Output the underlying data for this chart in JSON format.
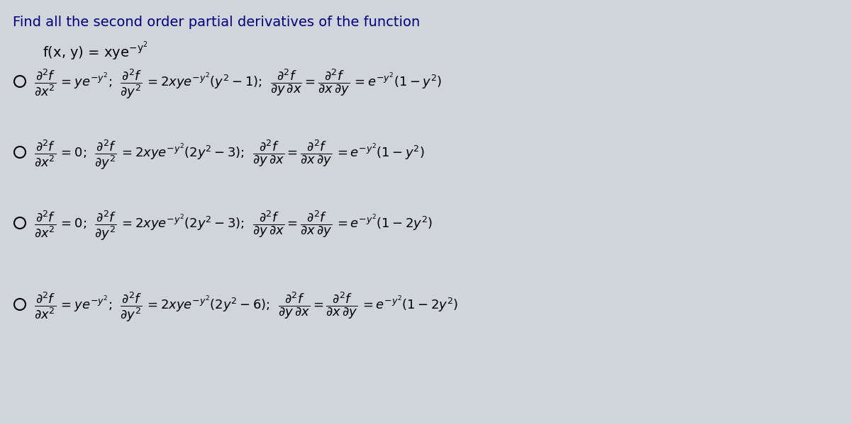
{
  "title": "Find all the second order partial derivatives of the function",
  "background_color": "#d0d4db",
  "text_color": "#000080",
  "math_color": "#000000",
  "title_fontsize": 14,
  "func_fontsize": 14,
  "option_fontsize": 13,
  "circle_color": "#000000",
  "options": [
    {
      "fxx": "= ye^{-y^2}",
      "fyy": "= 2xye^{-y^2}(y^2 - 1)",
      "fmix": "= e^{-y^2}(1 - y^2)"
    },
    {
      "fxx": "= 0",
      "fyy": "= 2xye^{-y^2}(2y^2 - 3)",
      "fmix": "= e^{-y^2}(1 - y^2)"
    },
    {
      "fxx": "= 0",
      "fyy": "= 2xye^{-y^2}(2y^2 - 3)",
      "fmix": "= e^{-y^2}(1 - 2y^2)"
    },
    {
      "fxx": "= ye^{-y^2}",
      "fyy": "= 2xye^{-y^2}(2y^2 - 6)",
      "fmix": "= e^{-y^2}(1 - 2y^2)"
    }
  ]
}
